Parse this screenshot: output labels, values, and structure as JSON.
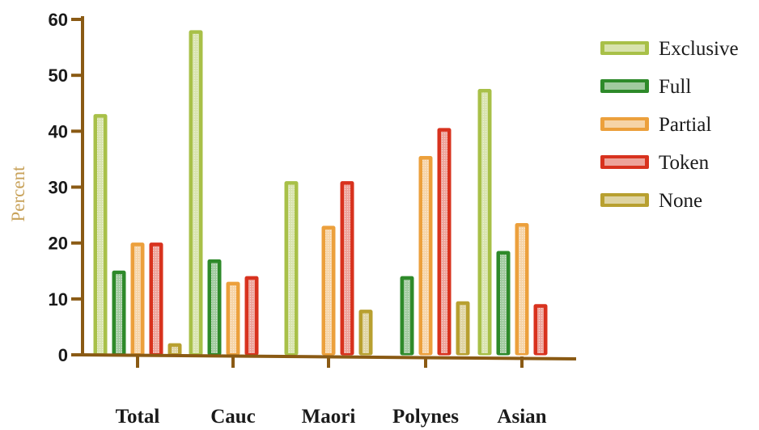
{
  "chart_data": {
    "type": "bar",
    "title": "",
    "xlabel": "",
    "ylabel": "Percent",
    "ylim": [
      0,
      60
    ],
    "yticks": [
      0,
      10,
      20,
      30,
      40,
      50,
      60
    ],
    "categories": [
      "Total",
      "Cauc",
      "Maori",
      "Polynes",
      "Asian"
    ],
    "series": [
      {
        "name": "Exclusive",
        "color": "#a8c048",
        "values": [
          43,
          58,
          31,
          null,
          47.5
        ]
      },
      {
        "name": "Full",
        "color": "#2e8a2a",
        "values": [
          15,
          17,
          null,
          14,
          18.5
        ]
      },
      {
        "name": "Partial",
        "color": "#eca03c",
        "values": [
          20,
          13,
          23,
          35.5,
          23.5
        ]
      },
      {
        "name": "Token",
        "color": "#d8321e",
        "values": [
          20,
          14,
          31,
          40.5,
          9
        ]
      },
      {
        "name": "None",
        "color": "#b8a030",
        "values": [
          2,
          null,
          8,
          9.5,
          null
        ]
      }
    ],
    "grid": false,
    "legend_position": "right",
    "axis_color": "#8a5a14"
  }
}
